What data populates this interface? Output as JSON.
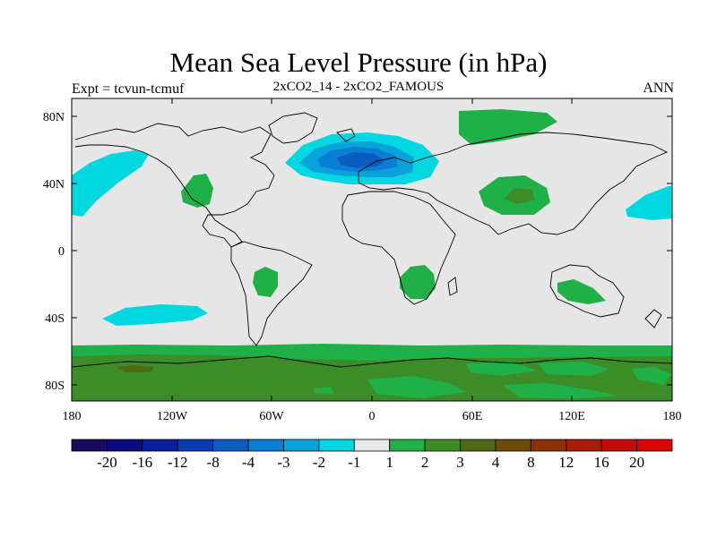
{
  "title": "Mean Sea Level Pressure (in hPa)",
  "subtitle": "2xCO2_14 - 2xCO2_FAMOUS",
  "experiment": "Expt = tcvun-tcmuf",
  "season": "ANN",
  "x_ticks": [
    "180",
    "120W",
    "60W",
    "0",
    "60E",
    "120E",
    "180"
  ],
  "y_ticks": [
    "80N",
    "40N",
    "0",
    "40S",
    "80S"
  ],
  "legend": {
    "labels": [
      "-20",
      "-16",
      "-12",
      "-8",
      "-4",
      "-3",
      "-2",
      "-1",
      "1",
      "2",
      "3",
      "4",
      "8",
      "12",
      "16",
      "20"
    ],
    "colors": [
      "#1a0a5e",
      "#0c0c82",
      "#0a1fa0",
      "#0a3cb4",
      "#0a5cc0",
      "#0a7ed0",
      "#0aa2da",
      "#00d7e0",
      "#e6e6e6",
      "#20b048",
      "#3c8c28",
      "#4e6a12",
      "#6e4a06",
      "#8a3206",
      "#a81e0a",
      "#c80a0a",
      "#dc0000"
    ]
  },
  "colors": {
    "background": "#e6e6e6",
    "coast": "#000000"
  }
}
